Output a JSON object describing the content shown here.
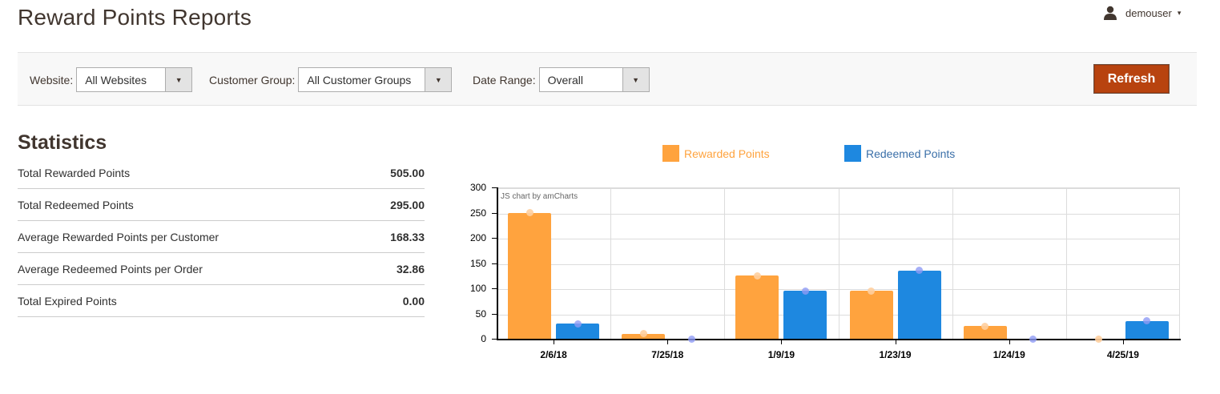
{
  "header": {
    "title": "Reward Points Reports",
    "user": {
      "name": "demouser",
      "icon": "user-icon",
      "caret": "▾"
    }
  },
  "filters": {
    "website": {
      "label": "Website:",
      "value": "All Websites"
    },
    "customer_group": {
      "label": "Customer Group:",
      "value": "All Customer Groups"
    },
    "date_range": {
      "label": "Date Range:",
      "value": "Overall"
    },
    "arrow": "▼",
    "refresh_label": "Refresh"
  },
  "statistics": {
    "title": "Statistics",
    "rows": [
      {
        "label": "Total Rewarded Points",
        "value": "505.00"
      },
      {
        "label": "Total Redeemed Points",
        "value": "295.00"
      },
      {
        "label": "Average Rewarded Points per Customer",
        "value": "168.33"
      },
      {
        "label": "Average Redeemed Points per Order",
        "value": "32.86"
      },
      {
        "label": "Total Expired Points",
        "value": "0.00"
      }
    ]
  },
  "colors": {
    "rewarded": "#ffa33e",
    "redeemed": "#1e88e0",
    "refresh": "#b8430f"
  },
  "chart_data": {
    "type": "bar",
    "title": "",
    "credit": "JS chart by amCharts",
    "categories": [
      "2/6/18",
      "7/25/18",
      "1/9/19",
      "1/23/19",
      "1/24/19",
      "4/25/19"
    ],
    "series": [
      {
        "name": "Rewarded Points",
        "color": "#ffa33e",
        "values": [
          250,
          10,
          125,
          95,
          25,
          0
        ]
      },
      {
        "name": "Redeemed Points",
        "color": "#1e88e0",
        "values": [
          30,
          0,
          95,
          135,
          0,
          35
        ]
      }
    ],
    "xlabel": "",
    "ylabel": "",
    "ylim": [
      0,
      300
    ],
    "yticks": [
      0,
      50,
      100,
      150,
      200,
      250,
      300
    ],
    "grid": true,
    "legend_position": "top"
  }
}
